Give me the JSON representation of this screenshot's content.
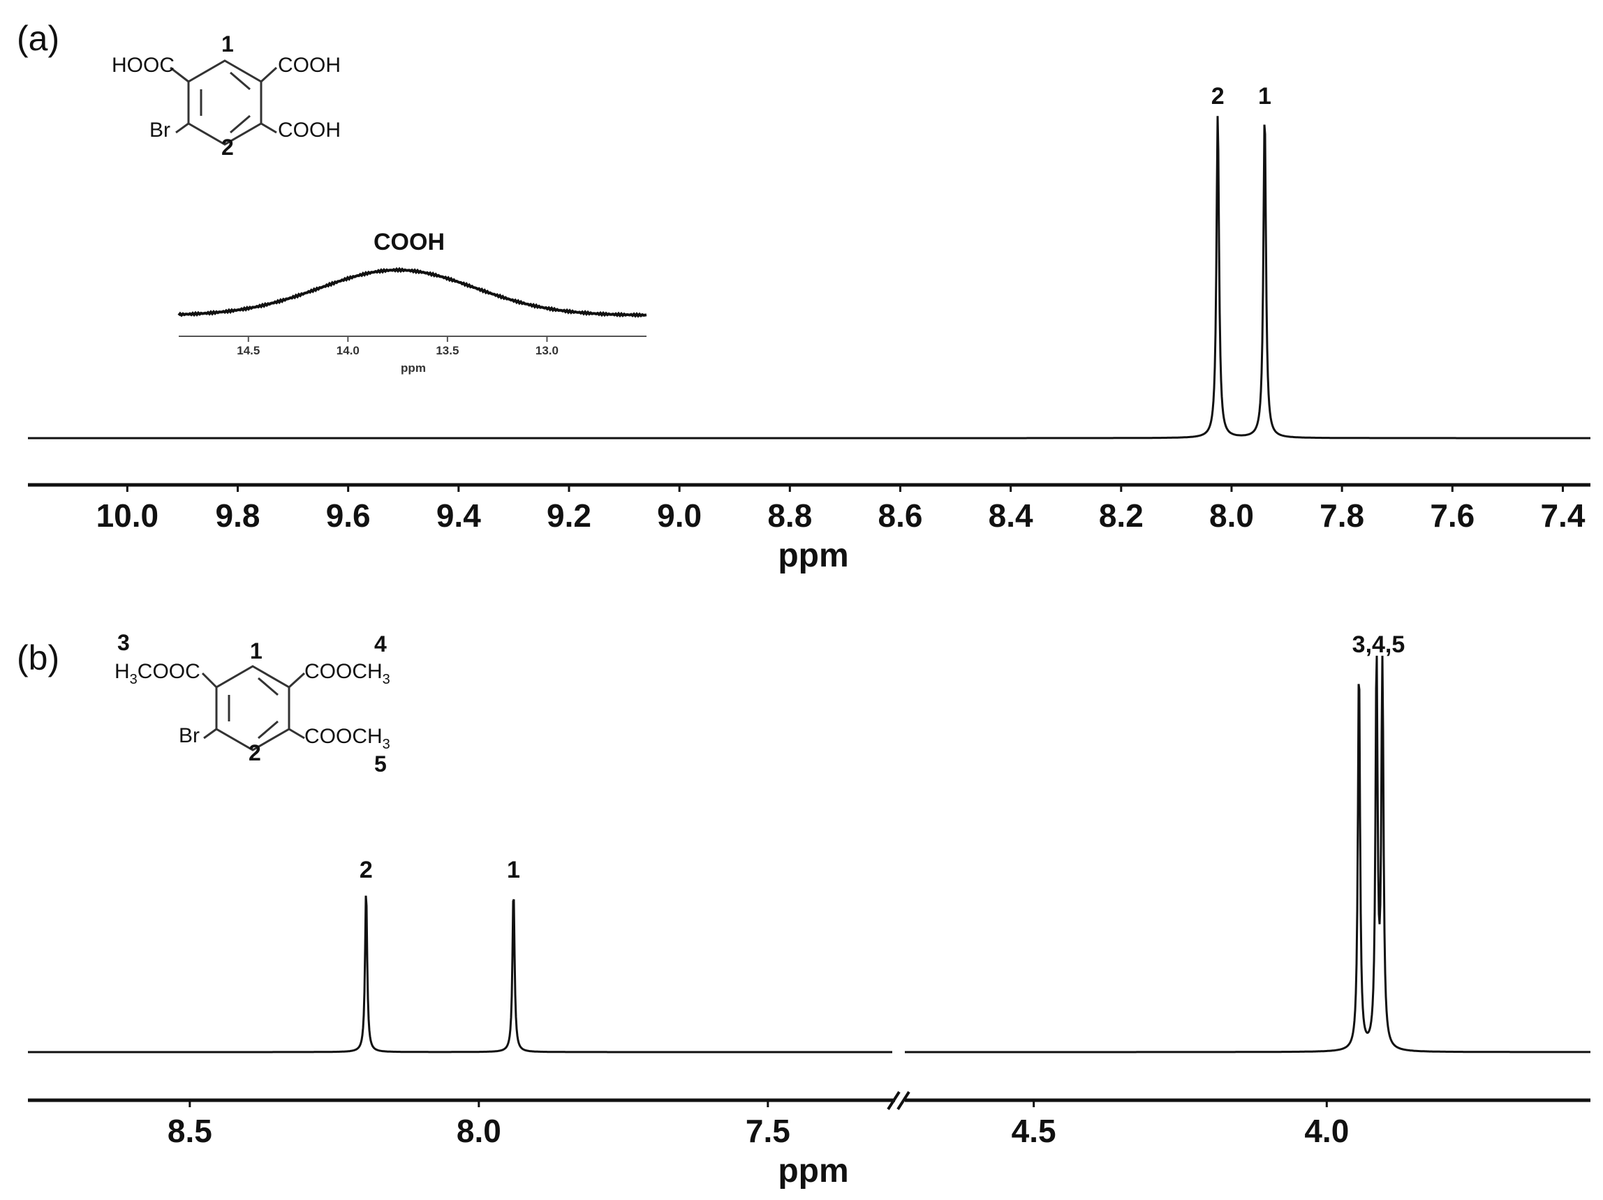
{
  "chart_data": [
    {
      "panel": "(a)",
      "type": "line",
      "xlabel": "ppm",
      "x_reversed": true,
      "xlim": [
        10.18,
        7.35
      ],
      "xticks": [
        "10.0",
        "9.8",
        "9.6",
        "9.4",
        "9.2",
        "9.0",
        "8.8",
        "8.6",
        "8.4",
        "8.2",
        "8.0",
        "7.8",
        "7.6",
        "7.4"
      ],
      "peaks": [
        {
          "label": "2",
          "ppm": 8.025,
          "height": 1.0
        },
        {
          "label": "1",
          "ppm": 7.94,
          "height": 1.0
        }
      ],
      "structure": {
        "substituents": {
          "top_left": "HOOC",
          "top_right": "COOH",
          "bottom_right": "COOH",
          "bottom_left": "Br"
        },
        "position_labels": [
          "1",
          "2"
        ]
      },
      "inset": {
        "title": "COOH",
        "xlabel": "ppm",
        "xticks": [
          "14.5",
          "14.0",
          "13.5",
          "13.0"
        ],
        "xlim": [
          14.85,
          12.5
        ],
        "peak_center": 13.75,
        "peak_width": 0.55
      }
    },
    {
      "panel": "(b)",
      "type": "line",
      "xlabel": "ppm",
      "x_reversed": true,
      "broken_axis": true,
      "segments": [
        {
          "xlim": [
            8.78,
            7.28
          ]
        },
        {
          "xlim": [
            4.72,
            3.55
          ]
        }
      ],
      "xticks": [
        "8.5",
        "8.0",
        "7.5",
        "4.5",
        "4.0"
      ],
      "peaks": [
        {
          "label": "2",
          "ppm": 8.195,
          "height": 0.42
        },
        {
          "label": "1",
          "ppm": 7.94,
          "height": 0.42
        },
        {
          "label": "3,4,5",
          "ppm": 3.945,
          "height": 1.0
        },
        {
          "label": "",
          "ppm": 3.915,
          "height": 1.0
        },
        {
          "label": "",
          "ppm": 3.905,
          "height": 1.0
        }
      ],
      "peak_group_label": "3,4,5",
      "structure": {
        "substituents": {
          "top_left": "H3COOC",
          "top_right": "COOCH3",
          "bottom_right": "COOCH3",
          "bottom_left": "Br"
        },
        "position_labels": [
          "1",
          "2",
          "3",
          "4",
          "5"
        ]
      }
    }
  ]
}
